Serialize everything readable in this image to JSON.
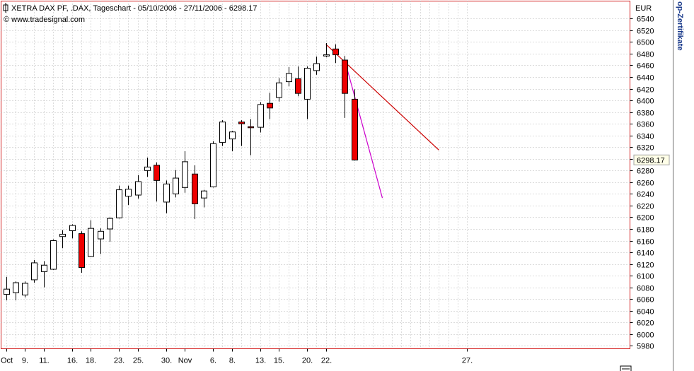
{
  "window": {
    "side_panel_label": "op-Zertifikate"
  },
  "chart_data": {
    "type": "candlestick",
    "title": "XETRA DAX PF, .DAX, Tageschart - 05/10/2006 - 27/11/2006 - 6298.17",
    "source": "© www.tradesignal.com",
    "currency_label": "EUR",
    "last_price_label": "6298.17",
    "ylim": [
      5975,
      6570
    ],
    "y_ticks": [
      5980,
      6000,
      6020,
      6040,
      6060,
      6080,
      6100,
      6120,
      6140,
      6160,
      6180,
      6200,
      6220,
      6240,
      6260,
      6280,
      6300,
      6320,
      6340,
      6360,
      6380,
      6400,
      6420,
      6440,
      6460,
      6480,
      6500,
      6520,
      6540
    ],
    "x_ticks": [
      "Oct",
      "9.",
      "11.",
      "16.",
      "18.",
      "23.",
      "25.",
      "30.",
      "Nov",
      "6.",
      "8.",
      "13.",
      "15.",
      "20.",
      "22.",
      "27."
    ],
    "x_tick_slots": [
      0,
      2,
      4,
      7,
      9,
      12,
      14,
      17,
      19,
      22,
      24,
      27,
      29,
      32,
      34,
      49
    ],
    "bar_color_up": "#ffffff",
    "bar_color_down": "#ee0000",
    "candles": [
      {
        "o": 6068,
        "h": 6098,
        "l": 6058,
        "c": 6077
      },
      {
        "o": 6071,
        "h": 6090,
        "l": 6058,
        "c": 6088
      },
      {
        "o": 6067,
        "h": 6090,
        "l": 6063,
        "c": 6087
      },
      {
        "o": 6093,
        "h": 6127,
        "l": 6088,
        "c": 6122
      },
      {
        "o": 6107,
        "h": 6125,
        "l": 6080,
        "c": 6118
      },
      {
        "o": 6111,
        "h": 6162,
        "l": 6110,
        "c": 6160
      },
      {
        "o": 6167,
        "h": 6178,
        "l": 6147,
        "c": 6171
      },
      {
        "o": 6177,
        "h": 6188,
        "l": 6164,
        "c": 6186
      },
      {
        "o": 6172,
        "h": 6176,
        "l": 6105,
        "c": 6114
      },
      {
        "o": 6133,
        "h": 6195,
        "l": 6132,
        "c": 6181
      },
      {
        "o": 6163,
        "h": 6181,
        "l": 6137,
        "c": 6176
      },
      {
        "o": 6180,
        "h": 6200,
        "l": 6158,
        "c": 6198
      },
      {
        "o": 6199,
        "h": 6254,
        "l": 6198,
        "c": 6247
      },
      {
        "o": 6236,
        "h": 6254,
        "l": 6221,
        "c": 6248
      },
      {
        "o": 6238,
        "h": 6272,
        "l": 6232,
        "c": 6261
      },
      {
        "o": 6280,
        "h": 6302,
        "l": 6269,
        "c": 6286
      },
      {
        "o": 6289,
        "h": 6294,
        "l": 6227,
        "c": 6263
      },
      {
        "o": 6226,
        "h": 6263,
        "l": 6207,
        "c": 6257
      },
      {
        "o": 6240,
        "h": 6281,
        "l": 6234,
        "c": 6267
      },
      {
        "o": 6251,
        "h": 6313,
        "l": 6242,
        "c": 6295
      },
      {
        "o": 6274,
        "h": 6289,
        "l": 6197,
        "c": 6223
      },
      {
        "o": 6233,
        "h": 6247,
        "l": 6217,
        "c": 6245
      },
      {
        "o": 6252,
        "h": 6330,
        "l": 6251,
        "c": 6326
      },
      {
        "o": 6328,
        "h": 6366,
        "l": 6322,
        "c": 6363
      },
      {
        "o": 6334,
        "h": 6348,
        "l": 6313,
        "c": 6346
      },
      {
        "o": 6363,
        "h": 6366,
        "l": 6322,
        "c": 6360
      },
      {
        "o": 6355,
        "h": 6368,
        "l": 6306,
        "c": 6354
      },
      {
        "o": 6354,
        "h": 6397,
        "l": 6345,
        "c": 6393
      },
      {
        "o": 6395,
        "h": 6413,
        "l": 6368,
        "c": 6387
      },
      {
        "o": 6405,
        "h": 6438,
        "l": 6398,
        "c": 6430
      },
      {
        "o": 6432,
        "h": 6457,
        "l": 6424,
        "c": 6446
      },
      {
        "o": 6437,
        "h": 6458,
        "l": 6407,
        "c": 6412
      },
      {
        "o": 6402,
        "h": 6458,
        "l": 6368,
        "c": 6455
      },
      {
        "o": 6451,
        "h": 6475,
        "l": 6444,
        "c": 6463
      },
      {
        "o": 6476,
        "h": 6498,
        "l": 6474,
        "c": 6478
      },
      {
        "o": 6488,
        "h": 6496,
        "l": 6464,
        "c": 6478
      },
      {
        "o": 6469,
        "h": 6476,
        "l": 6370,
        "c": 6412
      },
      {
        "o": 6402,
        "h": 6419,
        "l": 6297,
        "c": 6298
      }
    ],
    "trendlines": [
      {
        "color": "#cc0000",
        "from": {
          "slot": 34,
          "value": 6496
        },
        "to": {
          "slot": 46,
          "value": 6315
        }
      },
      {
        "color": "#cc00cc",
        "from": {
          "slot": 36,
          "value": 6469
        },
        "to": {
          "slot": 40,
          "value": 6233
        }
      }
    ]
  }
}
